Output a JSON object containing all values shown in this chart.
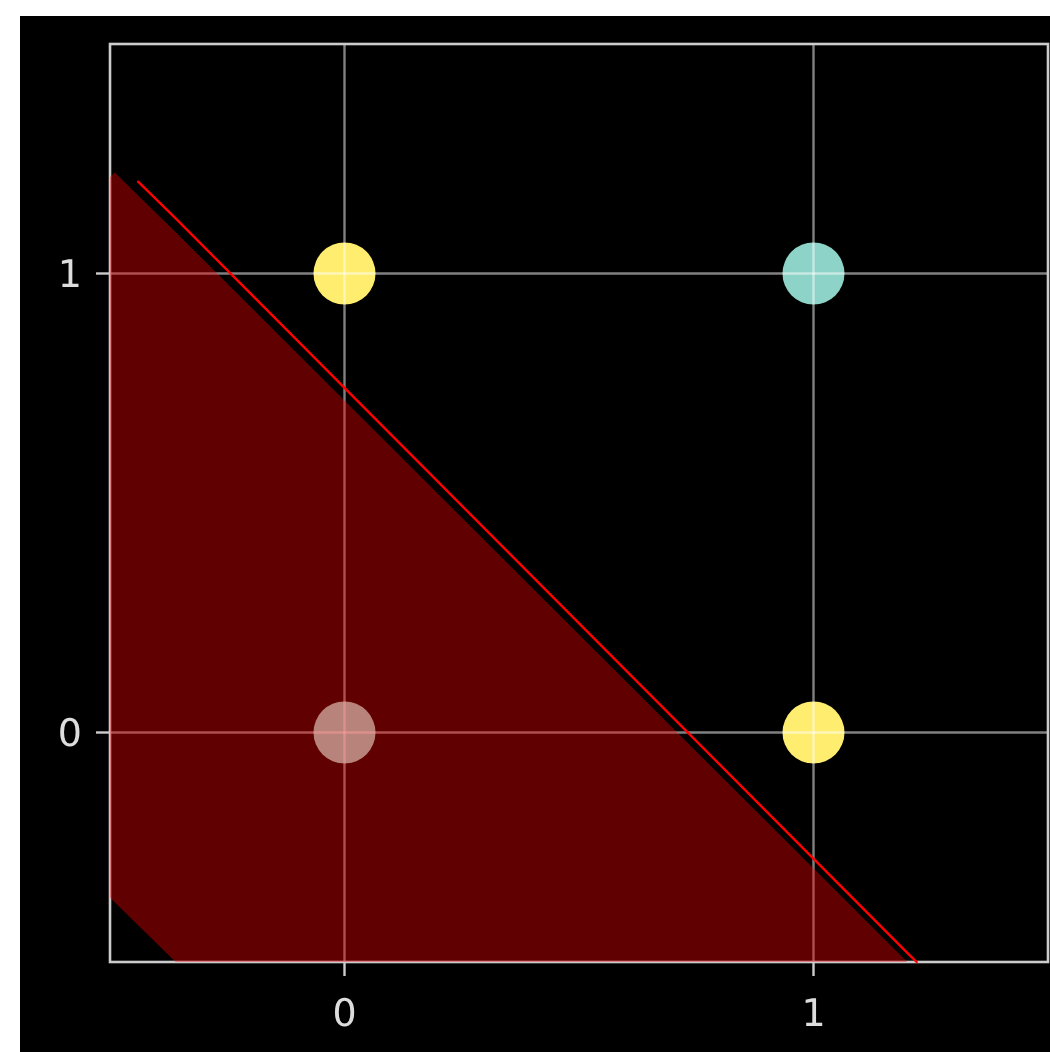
{
  "chart_data": {
    "type": "scatter",
    "xlim": [
      -0.5,
      1.5
    ],
    "ylim": [
      -0.5,
      1.5
    ],
    "xticks": [
      0,
      1
    ],
    "yticks": [
      0,
      1
    ],
    "grid": true,
    "series": [
      {
        "x": [
          0,
          0,
          1,
          1
        ],
        "values": [
          0,
          1,
          0,
          1
        ],
        "colors": [
          "#8dd3c7",
          "#ffed6f",
          "#ffed6f",
          "#8dd3c7"
        ],
        "marker": "circle"
      },
      {
        "type": "line",
        "color": "#ff0000",
        "line_style": "solid",
        "x": [
          -0.5,
          -0.49,
          -0.44,
          -0.36,
          1.2,
          1.22
        ],
        "values": [
          null,
          null,
          1.2,
          1.12,
          -0.48,
          -0.5
        ],
        "upper": [
          1.21,
          1.22,
          1.17,
          1.09,
          -0.5,
          null
        ],
        "lower": [
          -0.36,
          -0.37,
          -0.42,
          -0.5,
          -0.5,
          null
        ]
      }
    ]
  }
}
